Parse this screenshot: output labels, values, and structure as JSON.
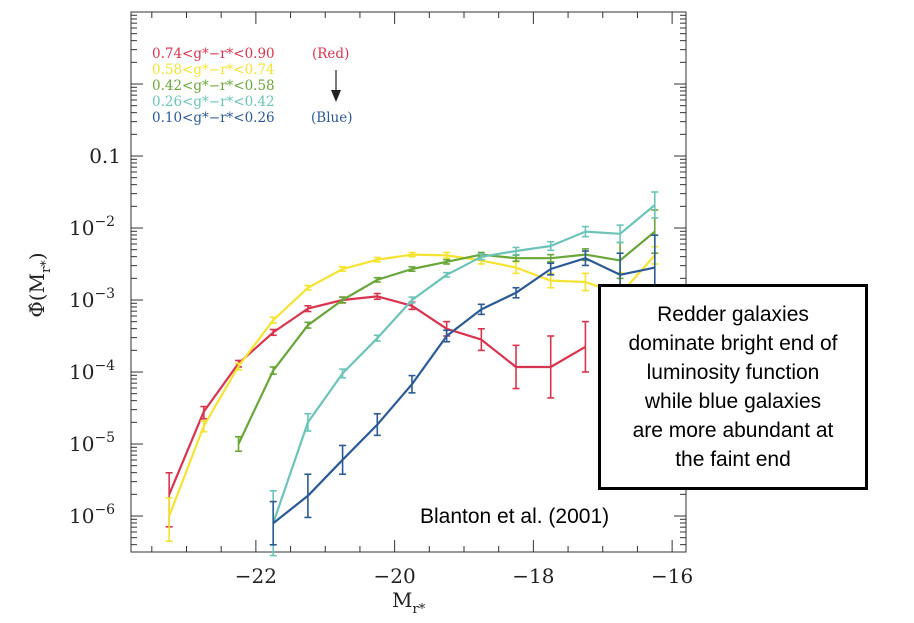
{
  "chart_data": {
    "type": "line",
    "title": "",
    "xlabel_main": "M",
    "xlabel_sub": "r*",
    "ylabel_main": "Φ̂(M",
    "ylabel_sub": "r*",
    "ylabel_close": ")",
    "xlim": [
      -23.8,
      -15.8
    ],
    "ylim_log10": [
      -6.5,
      1.0
    ],
    "x_ticks": [
      {
        "value": -22,
        "label": "−22"
      },
      {
        "value": -20,
        "label": "−20"
      },
      {
        "value": -18,
        "label": "−18"
      },
      {
        "value": -16,
        "label": "−16"
      }
    ],
    "y_ticks": [
      {
        "exp": -1,
        "label": "0.1",
        "sup": ""
      },
      {
        "exp": -2,
        "label": "10",
        "sup": "−2"
      },
      {
        "exp": -3,
        "label": "10",
        "sup": "−3"
      },
      {
        "exp": -4,
        "label": "10",
        "sup": "−4"
      },
      {
        "exp": -5,
        "label": "10",
        "sup": "−5"
      },
      {
        "exp": -6,
        "label": "10",
        "sup": "−6"
      }
    ],
    "legend": {
      "position": "top-left",
      "red_tag": "(Red)",
      "blue_tag": "(Blue)"
    },
    "series": [
      {
        "name": "0.74<g*−r*<0.90",
        "color": "#d9344f",
        "x": [
          -23.25,
          -22.75,
          -22.25,
          -21.75,
          -21.25,
          -20.75,
          -20.25,
          -19.75,
          -19.25,
          -18.75,
          -18.25,
          -17.75,
          -17.25
        ],
        "y": [
          -5.7,
          -4.55,
          -3.88,
          -3.45,
          -3.12,
          -3.0,
          -2.95,
          -3.08,
          -3.4,
          -3.55,
          -3.93,
          -3.93,
          -3.65
        ],
        "err_lo": [
          0.45,
          0.1,
          0.05,
          0.04,
          0.04,
          0.04,
          0.04,
          0.05,
          0.1,
          0.15,
          0.3,
          0.43,
          0.35
        ],
        "err_hi": [
          0.3,
          0.07,
          0.04,
          0.04,
          0.04,
          0.04,
          0.04,
          0.05,
          0.1,
          0.15,
          0.3,
          0.43,
          0.35
        ]
      },
      {
        "name": "0.58<g*−r*<0.74",
        "color": "#f4e431",
        "x": [
          -23.25,
          -22.75,
          -22.25,
          -21.75,
          -21.25,
          -20.75,
          -20.25,
          -19.75,
          -19.25,
          -18.75,
          -18.25,
          -17.75,
          -17.25,
          -16.75,
          -16.25
        ],
        "y": [
          -6.0,
          -4.75,
          -3.92,
          -3.28,
          -2.83,
          -2.57,
          -2.44,
          -2.37,
          -2.38,
          -2.45,
          -2.55,
          -2.73,
          -2.75,
          -2.92,
          -2.38
        ],
        "err_lo": [
          0.35,
          0.08,
          0.05,
          0.04,
          0.03,
          0.03,
          0.03,
          0.03,
          0.04,
          0.05,
          0.08,
          0.1,
          0.12,
          0.3,
          0.12
        ],
        "err_hi": [
          0.25,
          0.07,
          0.04,
          0.04,
          0.03,
          0.03,
          0.03,
          0.03,
          0.04,
          0.05,
          0.08,
          0.1,
          0.12,
          0.3,
          0.12
        ]
      },
      {
        "name": "0.42<g*−r*<0.58",
        "color": "#6aa63a",
        "x": [
          -22.25,
          -21.75,
          -21.25,
          -20.75,
          -20.25,
          -19.75,
          -19.25,
          -18.75,
          -18.25,
          -17.75,
          -17.25,
          -16.75,
          -16.25
        ],
        "y": [
          -5.0,
          -3.98,
          -3.35,
          -3.0,
          -2.72,
          -2.57,
          -2.47,
          -2.37,
          -2.42,
          -2.42,
          -2.37,
          -2.45,
          -2.05
        ],
        "err_lo": [
          0.1,
          0.05,
          0.04,
          0.04,
          0.03,
          0.03,
          0.03,
          0.03,
          0.04,
          0.05,
          0.08,
          0.25,
          0.3
        ],
        "err_hi": [
          0.1,
          0.05,
          0.04,
          0.04,
          0.03,
          0.03,
          0.03,
          0.03,
          0.04,
          0.05,
          0.08,
          0.25,
          0.3
        ]
      },
      {
        "name": "0.26<g*−r*<0.42",
        "color": "#6cc4b8",
        "x": [
          -21.75,
          -21.25,
          -20.75,
          -20.25,
          -19.75,
          -19.25,
          -18.75,
          -18.25,
          -17.75,
          -17.25,
          -16.75,
          -16.25
        ],
        "y": [
          -6.1,
          -4.7,
          -4.02,
          -3.53,
          -3.0,
          -2.65,
          -2.4,
          -2.32,
          -2.25,
          -2.05,
          -2.08,
          -1.68
        ],
        "err_lo": [
          0.45,
          0.12,
          0.06,
          0.04,
          0.04,
          0.03,
          0.04,
          0.05,
          0.06,
          0.07,
          0.12,
          0.18
        ],
        "err_hi": [
          0.45,
          0.12,
          0.06,
          0.04,
          0.04,
          0.03,
          0.04,
          0.05,
          0.06,
          0.07,
          0.12,
          0.18
        ]
      },
      {
        "name": "0.10<g*−r*<0.26",
        "color": "#2c5a96",
        "x": [
          -21.75,
          -21.25,
          -20.75,
          -20.25,
          -19.75,
          -19.25,
          -18.75,
          -18.25,
          -17.75,
          -17.25,
          -16.75,
          -16.25
        ],
        "y": [
          -6.1,
          -5.72,
          -5.22,
          -4.73,
          -4.17,
          -3.5,
          -3.13,
          -2.9,
          -2.57,
          -2.42,
          -2.65,
          -2.55
        ],
        "err_lo": [
          0.3,
          0.3,
          0.2,
          0.15,
          0.12,
          0.08,
          0.07,
          0.07,
          0.08,
          0.1,
          0.3,
          0.45
        ],
        "err_hi": [
          0.3,
          0.3,
          0.2,
          0.15,
          0.12,
          0.08,
          0.07,
          0.07,
          0.08,
          0.1,
          0.3,
          0.45
        ]
      }
    ]
  },
  "annotation": {
    "lines": [
      "Redder galaxies",
      "dominate bright end of",
      "luminosity function",
      "while blue galaxies",
      "are more abundant at",
      "the faint end"
    ]
  },
  "citation": "Blanton et al. (2001)"
}
